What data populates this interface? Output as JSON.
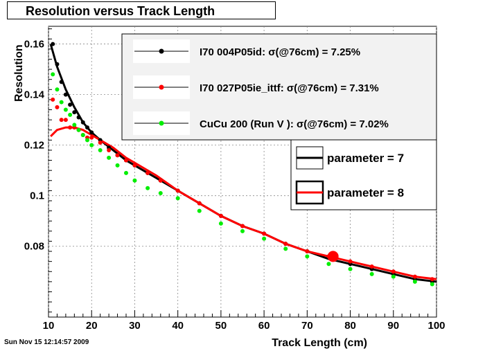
{
  "title": "Resolution versus Track Length",
  "datestamp": "Sun Nov 15 12:14:57 2009",
  "colors": {
    "black": "#000000",
    "red": "#ff0000",
    "green": "#00ee00",
    "legend_bg": "#f2f2f2"
  },
  "chart_data": {
    "type": "scatter",
    "title": "Resolution versus Track Length",
    "xlabel": "Track Length (cm)",
    "ylabel": "Resolution",
    "xlim": [
      10,
      100
    ],
    "ylim": [
      0.052,
      0.167
    ],
    "grid": true,
    "x_ticks": [
      10,
      20,
      30,
      40,
      50,
      60,
      70,
      80,
      90,
      100
    ],
    "x_tick_labels": [
      "10",
      "20",
      "30",
      "40",
      "50",
      "60",
      "70",
      "80",
      "90",
      "100"
    ],
    "y_ticks": [
      0.08,
      0.1,
      0.12,
      0.14,
      0.16
    ],
    "y_tick_labels": [
      "0.08",
      "0.1",
      "0.12",
      "0.14",
      "0.16"
    ],
    "legend_placement": "top-right",
    "legend": [
      {
        "text": "I70     004P05id: σ(@76cm) =  7.25%",
        "color": "#000000"
      },
      {
        "text": "I70     027P05ie_ittf: σ(@76cm) =  7.31%",
        "color": "#ff0000"
      },
      {
        "text": "CuCu 200 (Run V ):  σ(@76cm) =  7.02%",
        "color": "#00ee00"
      }
    ],
    "legend2": [
      {
        "text": "parameter = 7",
        "color": "#000000"
      },
      {
        "text": "parameter = 8",
        "color": "#ff0000"
      }
    ],
    "series": [
      {
        "color": "#000000",
        "kind": "points",
        "x": [
          11,
          12,
          13,
          14,
          15,
          16,
          17,
          18,
          19,
          20,
          22,
          24,
          26,
          28,
          30,
          33,
          36,
          40,
          45,
          50,
          55,
          60,
          65,
          70,
          75,
          80,
          85,
          90,
          95,
          99
        ],
        "y": [
          0.16,
          0.152,
          0.145,
          0.14,
          0.136,
          0.133,
          0.131,
          0.129,
          0.127,
          0.125,
          0.122,
          0.119,
          0.116,
          0.114,
          0.112,
          0.109,
          0.106,
          0.102,
          0.097,
          0.092,
          0.088,
          0.085,
          0.081,
          0.078,
          0.076,
          0.073,
          0.071,
          0.069,
          0.067,
          0.066
        ]
      },
      {
        "color": "#ff0000",
        "kind": "points",
        "x": [
          11,
          12,
          13,
          14,
          15,
          16,
          17,
          18,
          19,
          20,
          22,
          24,
          26,
          28,
          30,
          33,
          36,
          40,
          45,
          50,
          55,
          60,
          65,
          70,
          75,
          80,
          85,
          90,
          95,
          99
        ],
        "y": [
          0.138,
          0.135,
          0.13,
          0.13,
          0.127,
          0.127,
          0.126,
          0.124,
          0.123,
          0.123,
          0.121,
          0.118,
          0.116,
          0.114,
          0.112,
          0.109,
          0.106,
          0.102,
          0.097,
          0.092,
          0.088,
          0.085,
          0.081,
          0.078,
          0.076,
          0.074,
          0.072,
          0.07,
          0.068,
          0.067
        ]
      },
      {
        "color": "#00ee00",
        "kind": "points",
        "x": [
          11,
          12,
          13,
          14,
          15,
          16,
          17,
          18,
          19,
          20,
          22,
          24,
          26,
          28,
          30,
          33,
          36,
          40,
          45,
          50,
          55,
          60,
          65,
          70,
          75,
          80,
          85,
          90,
          95,
          99
        ],
        "y": [
          0.148,
          0.142,
          0.137,
          0.134,
          0.132,
          0.128,
          0.126,
          0.124,
          0.122,
          0.12,
          0.118,
          0.115,
          0.112,
          0.109,
          0.106,
          0.103,
          0.101,
          0.099,
          0.094,
          0.089,
          0.086,
          0.083,
          0.079,
          0.076,
          0.073,
          0.071,
          0.069,
          0.068,
          0.066,
          0.065
        ]
      },
      {
        "color": "#000000",
        "kind": "line",
        "x": [
          10.5,
          12,
          14,
          16,
          18,
          20,
          22,
          25,
          28,
          30,
          35,
          40,
          45,
          50,
          55,
          60,
          65,
          70,
          75,
          80,
          85,
          90,
          95,
          100
        ],
        "y": [
          0.16,
          0.151,
          0.142,
          0.135,
          0.129,
          0.125,
          0.122,
          0.118,
          0.114,
          0.112,
          0.107,
          0.102,
          0.097,
          0.092,
          0.088,
          0.085,
          0.081,
          0.078,
          0.075,
          0.073,
          0.071,
          0.069,
          0.067,
          0.066
        ]
      },
      {
        "color": "#ff0000",
        "kind": "line",
        "x": [
          10.5,
          12,
          14,
          16,
          18,
          20,
          22,
          25,
          28,
          30,
          35,
          40,
          45,
          50,
          55,
          60,
          65,
          70,
          75,
          80,
          85,
          90,
          95,
          100
        ],
        "y": [
          0.1235,
          0.126,
          0.127,
          0.127,
          0.126,
          0.124,
          0.122,
          0.119,
          0.115,
          0.113,
          0.108,
          0.102,
          0.097,
          0.092,
          0.088,
          0.085,
          0.081,
          0.078,
          0.076,
          0.074,
          0.072,
          0.07,
          0.068,
          0.067
        ]
      }
    ],
    "highlight_point": {
      "x": 76,
      "y": 0.076,
      "color": "#ff0000"
    }
  }
}
